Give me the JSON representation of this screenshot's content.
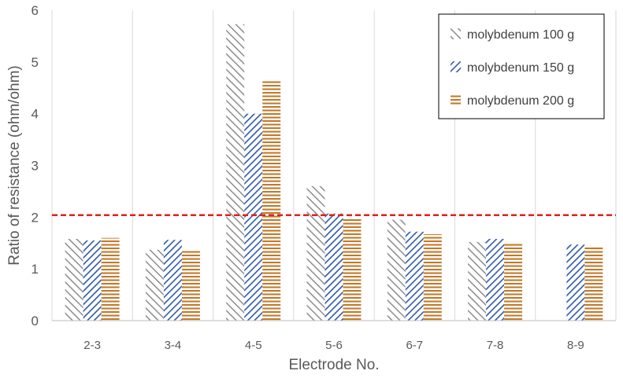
{
  "chart_data": {
    "type": "bar",
    "xlabel": "Electrode No.",
    "ylabel": "Ratio of resistance (ohm/ohm)",
    "ylim": [
      0,
      6
    ],
    "yticks": [
      0,
      1,
      2,
      3,
      4,
      5,
      6
    ],
    "grid": "vertical",
    "legend": "top-right",
    "categories": [
      "2-3",
      "3-4",
      "4-5",
      "5-6",
      "6-7",
      "7-8",
      "8-9"
    ],
    "series": [
      {
        "name": "molybdenum 100 g",
        "color": "#8c8c8c",
        "pattern": "diagonal",
        "values": [
          1.58,
          1.37,
          5.73,
          2.6,
          1.95,
          1.52,
          null
        ]
      },
      {
        "name": "molybdenum 150 g",
        "color": "#2e5aa8",
        "pattern": "diagonal-dense",
        "values": [
          1.55,
          1.56,
          4.0,
          2.07,
          1.72,
          1.58,
          1.47
        ]
      },
      {
        "name": "molybdenum 200 g",
        "color": "#c07a2c",
        "pattern": "horizontal",
        "values": [
          1.6,
          1.36,
          4.66,
          1.99,
          1.67,
          1.52,
          1.42
        ]
      }
    ],
    "reference_line": {
      "y": 2.04,
      "color": "#e02020",
      "style": "dashed"
    }
  }
}
